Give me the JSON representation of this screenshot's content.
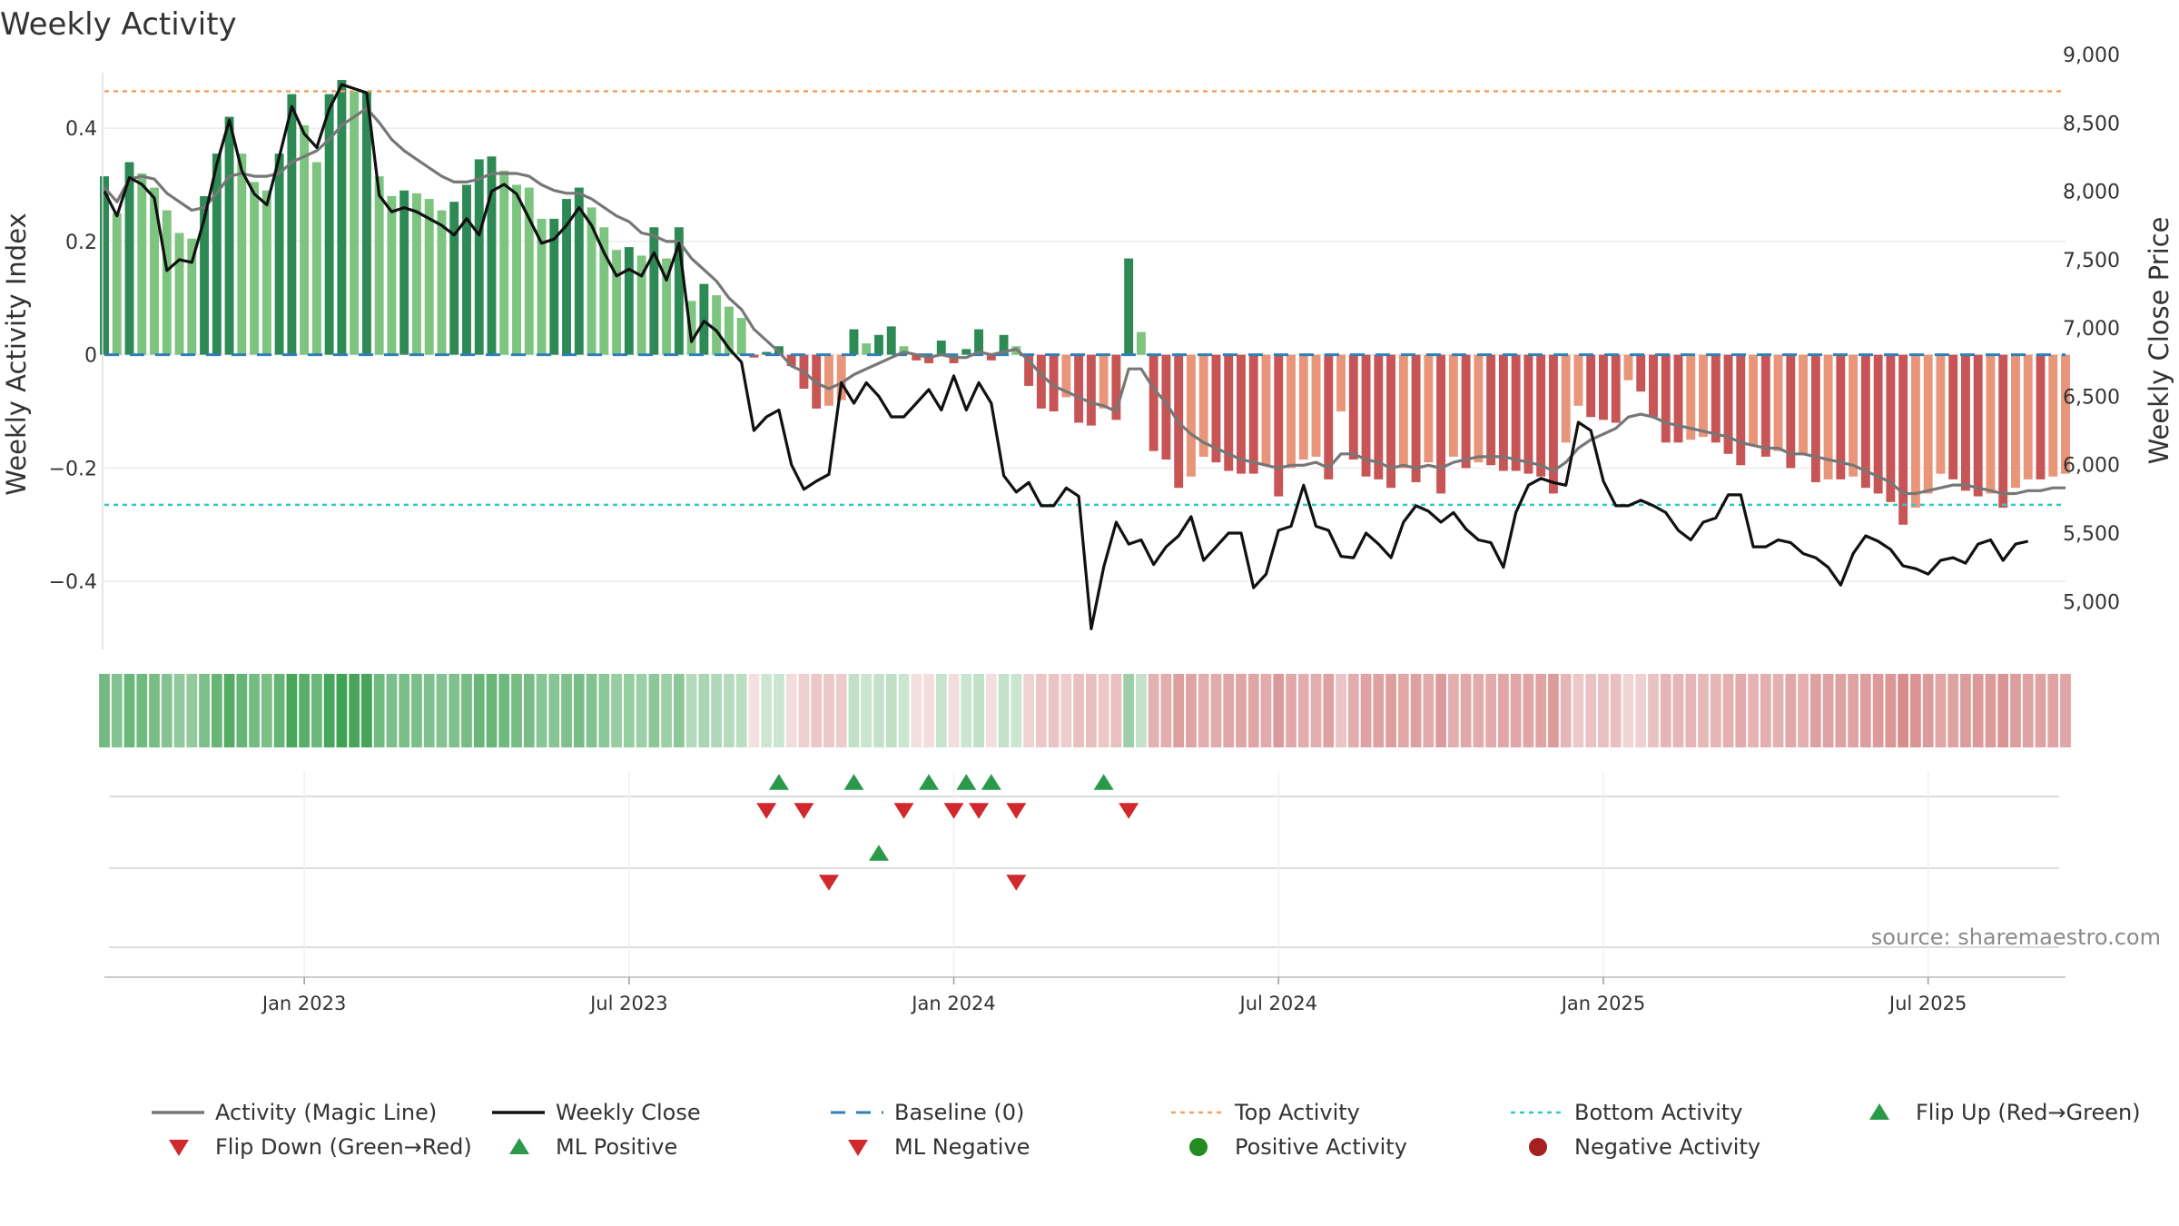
{
  "chart_data": {
    "type": "bar+line",
    "title": "Weekly Activity",
    "ylabel_left": "Weekly Activity Index",
    "ylabel_right": "Weekly Close Price",
    "ylim_left": [
      -0.52,
      0.53
    ],
    "ylim_right": [
      4650,
      9000
    ],
    "yticks_left": [
      {
        "value": 0.4,
        "label": "0.4"
      },
      {
        "value": 0.2,
        "label": "0.2"
      },
      {
        "value": 0,
        "label": "0"
      },
      {
        "value": -0.2,
        "label": "−0.2"
      },
      {
        "value": -0.4,
        "label": "−0.4"
      }
    ],
    "yticks_right": [
      {
        "value": 9000,
        "label": "9,000"
      },
      {
        "value": 8500,
        "label": "8,500"
      },
      {
        "value": 8000,
        "label": "8,000"
      },
      {
        "value": 7500,
        "label": "7,500"
      },
      {
        "value": 7000,
        "label": "7,000"
      },
      {
        "value": 6500,
        "label": "6,500"
      },
      {
        "value": 6000,
        "label": "6,000"
      },
      {
        "value": 5500,
        "label": "5,500"
      },
      {
        "value": 5000,
        "label": "5,000"
      }
    ],
    "xticks": [
      {
        "week": 16,
        "label": "Jan 2023"
      },
      {
        "week": 42,
        "label": "Jul 2023"
      },
      {
        "week": 68,
        "label": "Jan 2024"
      },
      {
        "week": 94,
        "label": "Jul 2024"
      },
      {
        "week": 120,
        "label": "Jan 2025"
      },
      {
        "week": 146,
        "label": "Jul 2025"
      }
    ],
    "x_range_weeks": [
      0,
      157
    ],
    "top_activity": 0.465,
    "bottom_activity": -0.265,
    "baseline": 0,
    "activity": [
      0.315,
      0.25,
      0.34,
      0.32,
      0.295,
      0.255,
      0.215,
      0.205,
      0.28,
      0.355,
      0.42,
      0.355,
      0.305,
      0.29,
      0.355,
      0.46,
      0.405,
      0.34,
      0.46,
      0.485,
      0.465,
      0.465,
      0.315,
      0.28,
      0.29,
      0.285,
      0.275,
      0.255,
      0.27,
      0.3,
      0.345,
      0.35,
      0.325,
      0.3,
      0.295,
      0.24,
      0.24,
      0.275,
      0.295,
      0.26,
      0.225,
      0.185,
      0.19,
      0.175,
      0.225,
      0.17,
      0.225,
      0.095,
      0.125,
      0.105,
      0.085,
      0.065,
      -0.005,
      0.005,
      0.015,
      -0.02,
      -0.06,
      -0.095,
      -0.09,
      -0.08,
      0.045,
      0.02,
      0.035,
      0.05,
      0.015,
      -0.01,
      -0.015,
      0.025,
      -0.015,
      0.01,
      0.045,
      -0.01,
      0.035,
      0.015,
      -0.055,
      -0.095,
      -0.1,
      -0.075,
      -0.12,
      -0.125,
      -0.095,
      -0.115,
      0.17,
      0.04,
      -0.17,
      -0.185,
      -0.235,
      -0.215,
      -0.18,
      -0.19,
      -0.205,
      -0.21,
      -0.21,
      -0.195,
      -0.25,
      -0.2,
      -0.185,
      -0.18,
      -0.22,
      -0.1,
      -0.185,
      -0.215,
      -0.22,
      -0.235,
      -0.2,
      -0.225,
      -0.19,
      -0.245,
      -0.18,
      -0.2,
      -0.19,
      -0.195,
      -0.205,
      -0.205,
      -0.21,
      -0.215,
      -0.245,
      -0.155,
      -0.09,
      -0.11,
      -0.115,
      -0.12,
      -0.045,
      -0.065,
      -0.11,
      -0.155,
      -0.155,
      -0.15,
      -0.145,
      -0.155,
      -0.175,
      -0.195,
      -0.16,
      -0.18,
      -0.17,
      -0.2,
      -0.175,
      -0.225,
      -0.22,
      -0.22,
      -0.215,
      -0.235,
      -0.245,
      -0.26,
      -0.3,
      -0.27,
      -0.245,
      -0.21,
      -0.22,
      -0.24,
      -0.25,
      -0.245,
      -0.27,
      -0.235,
      -0.22,
      -0.22,
      -0.215,
      -0.21
    ],
    "magic_line": [
      0.295,
      0.27,
      0.31,
      0.315,
      0.31,
      0.285,
      0.27,
      0.255,
      0.26,
      0.285,
      0.315,
      0.32,
      0.315,
      0.315,
      0.32,
      0.34,
      0.35,
      0.36,
      0.38,
      0.405,
      0.42,
      0.435,
      0.41,
      0.38,
      0.36,
      0.345,
      0.33,
      0.315,
      0.305,
      0.305,
      0.31,
      0.32,
      0.32,
      0.32,
      0.315,
      0.3,
      0.29,
      0.285,
      0.285,
      0.275,
      0.26,
      0.245,
      0.235,
      0.215,
      0.21,
      0.2,
      0.2,
      0.17,
      0.15,
      0.13,
      0.1,
      0.08,
      0.045,
      0.025,
      0.005,
      -0.02,
      -0.03,
      -0.05,
      -0.06,
      -0.05,
      -0.035,
      -0.025,
      -0.015,
      -0.005,
      0.005,
      0.0,
      -0.005,
      0.0,
      -0.005,
      -0.005,
      0.005,
      0.0,
      0.005,
      0.01,
      -0.01,
      -0.035,
      -0.055,
      -0.065,
      -0.075,
      -0.085,
      -0.09,
      -0.1,
      -0.025,
      -0.025,
      -0.06,
      -0.085,
      -0.12,
      -0.14,
      -0.155,
      -0.165,
      -0.175,
      -0.185,
      -0.19,
      -0.195,
      -0.2,
      -0.195,
      -0.195,
      -0.19,
      -0.2,
      -0.175,
      -0.175,
      -0.185,
      -0.19,
      -0.2,
      -0.195,
      -0.2,
      -0.195,
      -0.2,
      -0.19,
      -0.185,
      -0.18,
      -0.18,
      -0.18,
      -0.185,
      -0.19,
      -0.195,
      -0.205,
      -0.19,
      -0.165,
      -0.15,
      -0.14,
      -0.13,
      -0.11,
      -0.105,
      -0.11,
      -0.12,
      -0.125,
      -0.13,
      -0.135,
      -0.14,
      -0.145,
      -0.155,
      -0.16,
      -0.165,
      -0.165,
      -0.175,
      -0.175,
      -0.18,
      -0.185,
      -0.19,
      -0.195,
      -0.205,
      -0.215,
      -0.225,
      -0.245,
      -0.245,
      -0.24,
      -0.235,
      -0.23,
      -0.23,
      -0.235,
      -0.24,
      -0.245,
      -0.245,
      -0.24,
      -0.24,
      -0.235,
      -0.235
    ],
    "weekly_close": [
      8000,
      7820,
      8100,
      8050,
      7950,
      7420,
      7500,
      7480,
      7800,
      8200,
      8520,
      8150,
      7980,
      7900,
      8250,
      8620,
      8420,
      8320,
      8600,
      8780,
      8750,
      8720,
      7970,
      7850,
      7880,
      7850,
      7800,
      7750,
      7680,
      7800,
      7680,
      8000,
      8050,
      7980,
      7800,
      7620,
      7650,
      7750,
      7880,
      7750,
      7550,
      7380,
      7430,
      7380,
      7550,
      7350,
      7620,
      6900,
      7050,
      6980,
      6850,
      6750,
      6250,
      6350,
      6400,
      6000,
      5820,
      5880,
      5930,
      6600,
      6450,
      6600,
      6500,
      6350,
      6350,
      6450,
      6550,
      6400,
      6650,
      6400,
      6600,
      6450,
      5920,
      5800,
      5870,
      5700,
      5700,
      5830,
      5770,
      4800,
      5250,
      5580,
      5420,
      5450,
      5270,
      5400,
      5480,
      5620,
      5300,
      5400,
      5500,
      5500,
      5100,
      5200,
      5520,
      5550,
      5850,
      5550,
      5520,
      5330,
      5320,
      5500,
      5420,
      5320,
      5580,
      5700,
      5660,
      5580,
      5650,
      5530,
      5450,
      5430,
      5250,
      5650,
      5850,
      5900,
      5870,
      5850,
      6310,
      6250,
      5880,
      5700,
      5700,
      5740,
      5700,
      5650,
      5520,
      5450,
      5580,
      5610,
      5780,
      5780,
      5400,
      5400,
      5450,
      5430,
      5350,
      5320,
      5250,
      5120,
      5350,
      5480,
      5440,
      5380,
      5260,
      5240,
      5200,
      5300,
      5320,
      5280,
      5420,
      5450,
      5300,
      5420,
      5440
    ],
    "flip_up_weeks": [
      54,
      60,
      66,
      69,
      71,
      80
    ],
    "flip_down_weeks": [
      53,
      56,
      64,
      68,
      70,
      73,
      82
    ],
    "ml_positive_weeks": [
      62
    ],
    "ml_negative_weeks": [
      58,
      73
    ],
    "legend": [
      {
        "label": "Activity (Magic Line)",
        "kind": "line",
        "color": "#777777"
      },
      {
        "label": "Weekly Close",
        "kind": "line",
        "color": "#111111"
      },
      {
        "label": "Baseline (0)",
        "kind": "dashed",
        "color": "#2f7fb8"
      },
      {
        "label": "Top Activity",
        "kind": "dotted",
        "color": "#f0a060"
      },
      {
        "label": "Bottom Activity",
        "kind": "dotted",
        "color": "#30c8c8"
      },
      {
        "label": "Flip Up (Red→Green)",
        "kind": "triangle-up",
        "color": "#2a9a4a"
      },
      {
        "label": "Flip Down (Green→Red)",
        "kind": "triangle-down",
        "color": "#d0282d"
      },
      {
        "label": "ML Positive",
        "kind": "triangle-up",
        "color": "#2a9a4a"
      },
      {
        "label": "ML Negative",
        "kind": "triangle-down",
        "color": "#d0282d"
      },
      {
        "label": "Positive Activity",
        "kind": "circle",
        "color": "#228b22"
      },
      {
        "label": "Negative Activity",
        "kind": "circle",
        "color": "#a52020"
      }
    ],
    "colors": {
      "pos_dark": "#2e8a55",
      "pos_light": "#7cc47f",
      "neg_dark": "#c85555",
      "neg_light": "#e8957a",
      "magic_line": "#777777",
      "close_line": "#111111",
      "baseline": "#2f7fb8",
      "top_line": "#f0a060",
      "bottom_line": "#30c8c8",
      "flip_up": "#2a9a4a",
      "flip_down": "#d0282d"
    }
  },
  "source_text": "source: sharemaestro.com"
}
